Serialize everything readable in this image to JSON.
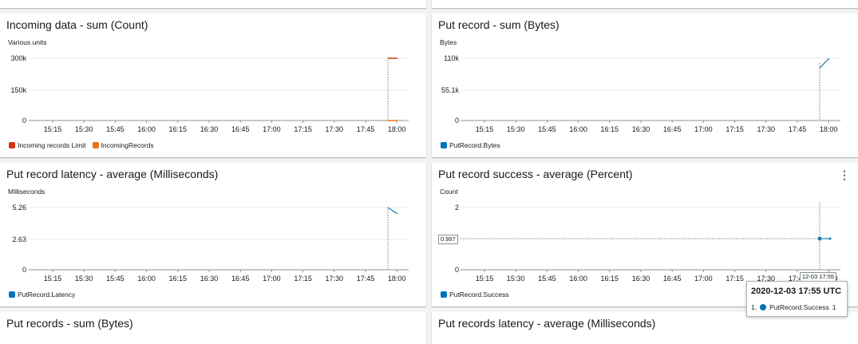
{
  "colors": {
    "red": "#d13212",
    "orange": "#ec7211",
    "blue": "#1f77b4",
    "grid": "#e9ebed",
    "panel_bg": "#ffffff"
  },
  "x_ticks": [
    "15:15",
    "15:30",
    "15:45",
    "16:00",
    "16:15",
    "16:30",
    "16:45",
    "17:00",
    "17:15",
    "17:30",
    "17:45",
    "18:00"
  ],
  "panels": {
    "incoming_data": {
      "title": "Incoming data - sum (Count)",
      "unit": "Various units",
      "y_ticks": [
        "300k",
        "150k",
        "0"
      ],
      "legend": [
        {
          "label": "Incoming records Limit",
          "color": "#d13212"
        },
        {
          "label": "IncomingRecords",
          "color": "#ec7211"
        }
      ]
    },
    "put_record_bytes": {
      "title": "Put record - sum (Bytes)",
      "unit": "Bytes",
      "y_ticks": [
        "110k",
        "55.1k",
        "0"
      ],
      "legend": [
        {
          "label": "PutRecord.Bytes",
          "color": "#0073bb"
        }
      ]
    },
    "put_record_latency": {
      "title": "Put record latency - average (Milliseconds)",
      "unit": "Milliseconds",
      "y_ticks": [
        "5.26",
        "2.63",
        "0"
      ],
      "legend": [
        {
          "label": "PutRecord.Latency",
          "color": "#0073bb"
        }
      ]
    },
    "put_record_success": {
      "title": "Put record success - average (Percent)",
      "unit": "Count",
      "y_ticks": [
        "2",
        "",
        "0"
      ],
      "value_marker": "0.997",
      "time_marker": "12-03 17:55",
      "legend": [
        {
          "label": "PutRecord.Success",
          "color": "#0073bb"
        }
      ],
      "menu_icon": "kebab-menu-icon"
    },
    "put_records_bytes": {
      "title": "Put records - sum (Bytes)"
    },
    "put_records_latency": {
      "title": "Put records latency - average (Milliseconds)"
    }
  },
  "tooltip": {
    "title": "2020-12-03 17:55 UTC",
    "index": "1.",
    "series": "PutRecord.Success",
    "value": "1"
  },
  "chart_data": [
    {
      "type": "line",
      "x": [
        "17:55",
        "18:00"
      ],
      "series": [
        {
          "name": "Incoming records Limit",
          "values": [
            300000,
            300000
          ]
        },
        {
          "name": "IncomingRecords",
          "values": [
            0,
            0
          ]
        }
      ],
      "title": "Incoming data - sum (Count)",
      "ylabel": "Various units",
      "ylim": [
        0,
        300000
      ]
    },
    {
      "type": "line",
      "x": [
        "17:55",
        "18:00"
      ],
      "series": [
        {
          "name": "PutRecord.Bytes",
          "values": [
            94000,
            110000
          ]
        }
      ],
      "title": "Put record - sum (Bytes)",
      "ylabel": "Bytes",
      "ylim": [
        0,
        110000
      ]
    },
    {
      "type": "line",
      "x": [
        "17:55",
        "18:00"
      ],
      "series": [
        {
          "name": "PutRecord.Latency",
          "values": [
            5.26,
            4.9
          ]
        }
      ],
      "title": "Put record latency - average (Milliseconds)",
      "ylabel": "Milliseconds",
      "ylim": [
        0,
        5.26
      ]
    },
    {
      "type": "line",
      "x": [
        "17:55",
        "18:00"
      ],
      "series": [
        {
          "name": "PutRecord.Success",
          "values": [
            1,
            1
          ]
        }
      ],
      "title": "Put record success - average (Percent)",
      "ylabel": "Count",
      "ylim": [
        0,
        2
      ]
    }
  ]
}
